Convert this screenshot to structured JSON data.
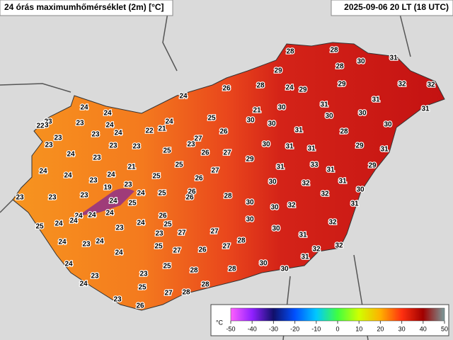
{
  "header": {
    "title": "24 órás maximumhőmérséklet (2m) [°C]",
    "timestamp": "2025-09-06 20 LT (18 UTC)"
  },
  "stations": [
    28,
    28,
    31,
    30,
    28,
    29,
    32,
    32,
    26,
    28,
    24,
    29,
    29,
    24,
    31,
    31,
    30,
    31,
    21,
    25,
    30,
    30,
    30,
    30,
    24,
    21,
    22,
    31,
    28,
    30,
    26,
    27,
    23,
    26,
    27,
    30,
    31,
    31,
    29,
    31,
    25,
    29,
    25,
    27,
    31,
    33,
    31,
    29,
    26,
    25,
    30,
    32,
    31,
    30,
    26,
    26,
    25,
    28,
    32,
    25,
    31,
    30,
    30,
    32,
    26,
    30,
    25,
    27,
    27,
    30,
    31,
    32,
    28,
    27,
    25,
    27,
    26,
    32,
    32,
    24,
    25,
    31,
    30,
    30,
    28,
    28,
    23,
    23,
    25,
    28,
    28,
    27,
    23,
    26,
    24,
    24,
    24,
    24,
    23,
    23,
    22,
    23,
    24,
    24,
    23,
    23,
    23,
    23,
    23,
    24,
    23,
    24,
    24,
    21,
    23,
    24,
    23,
    23,
    23,
    19,
    23,
    24,
    24,
    24,
    24,
    24,
    24,
    25,
    24,
    23,
    23,
    24,
    24,
    24,
    23
  ],
  "colorbar": {
    "unit": "°C",
    "ticks": [
      -50,
      -40,
      -30,
      -20,
      -10,
      0,
      10,
      20,
      30,
      40,
      50
    ]
  }
}
